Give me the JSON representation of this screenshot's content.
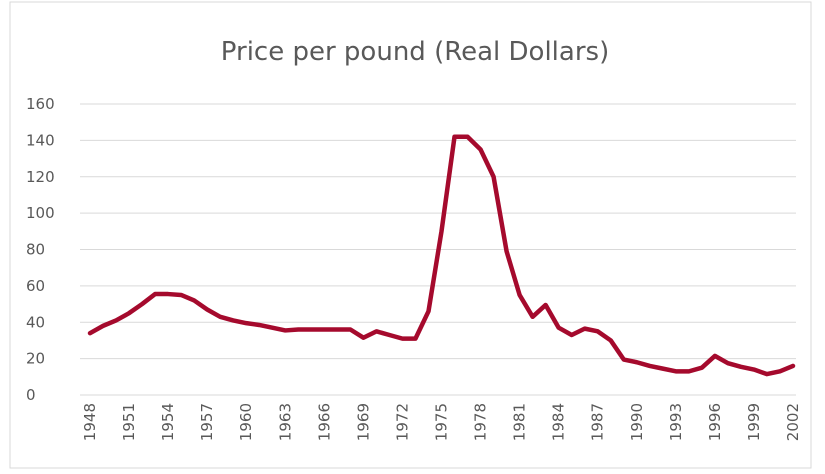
{
  "chart_data": {
    "type": "line",
    "title": "Price per pound   (Real Dollars)",
    "x": [
      1948,
      1949,
      1950,
      1951,
      1952,
      1953,
      1954,
      1955,
      1956,
      1957,
      1958,
      1959,
      1960,
      1961,
      1962,
      1963,
      1964,
      1965,
      1966,
      1967,
      1968,
      1969,
      1970,
      1971,
      1972,
      1973,
      1974,
      1975,
      1976,
      1977,
      1978,
      1979,
      1980,
      1981,
      1982,
      1983,
      1984,
      1985,
      1986,
      1987,
      1988,
      1989,
      1990,
      1991,
      1992,
      1993,
      1994,
      1995,
      1996,
      1997,
      1998,
      1999,
      2000,
      2001,
      2002
    ],
    "series": [
      {
        "color": "#a50a2d",
        "values": [
          34,
          38,
          41,
          45,
          50,
          55.5,
          55.5,
          55,
          52,
          47,
          43,
          41,
          39.5,
          38.5,
          37,
          35.5,
          36,
          36,
          36,
          36,
          36,
          31.5,
          35,
          33,
          31,
          31,
          46,
          90,
          142,
          142,
          135,
          120,
          79,
          55,
          43,
          49.5,
          37,
          33,
          36.5,
          35,
          30,
          19.5,
          18,
          16,
          14.5,
          13,
          13,
          15,
          21.5,
          17.5,
          15.5,
          14,
          11.5,
          13,
          16
        ]
      }
    ],
    "xlim": [
      1948,
      2002
    ],
    "xticks": [
      1948,
      1951,
      1954,
      1957,
      1960,
      1963,
      1966,
      1969,
      1972,
      1975,
      1978,
      1981,
      1984,
      1987,
      1990,
      1993,
      1996,
      1999,
      2002
    ],
    "ylim": [
      0,
      160
    ],
    "yticks": [
      0,
      20,
      40,
      60,
      80,
      100,
      120,
      140,
      160
    ],
    "grid": true
  }
}
